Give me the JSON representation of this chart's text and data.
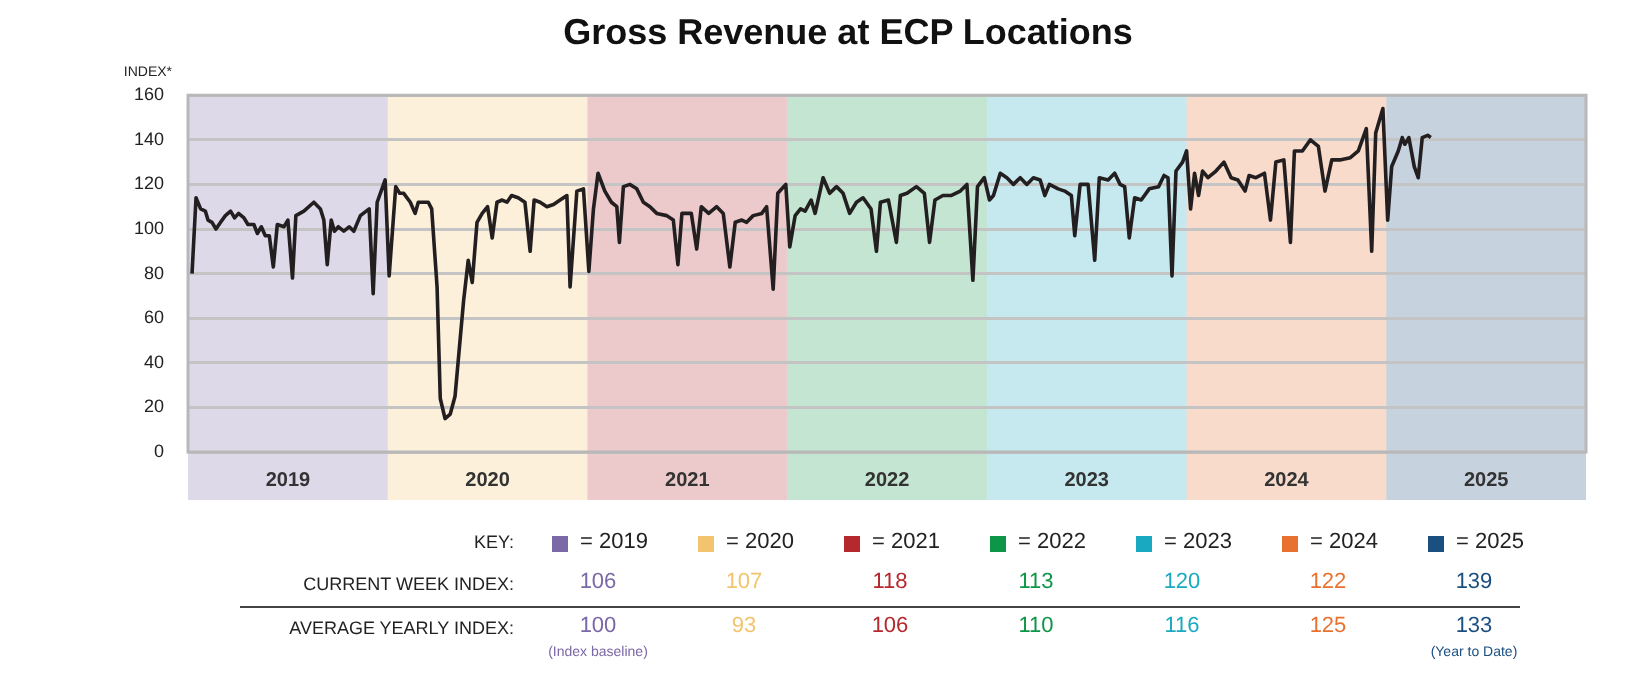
{
  "chart_data": {
    "type": "line",
    "title": "Gross Revenue at ECP Locations",
    "ylabel": "INDEX*",
    "xlim": [
      2019,
      2026
    ],
    "ylim": [
      0,
      160
    ],
    "yticks": [
      0,
      20,
      40,
      60,
      80,
      100,
      120,
      140,
      160
    ],
    "xticks": [
      {
        "value": 2019.5,
        "label": "2019"
      },
      {
        "value": 2020.5,
        "label": "2020"
      },
      {
        "value": 2021.5,
        "label": "2021"
      },
      {
        "value": 2022.5,
        "label": "2022"
      },
      {
        "value": 2023.5,
        "label": "2023"
      },
      {
        "value": 2024.5,
        "label": "2024"
      },
      {
        "value": 2025.5,
        "label": "2025"
      }
    ],
    "grid": "y",
    "legend": false,
    "marker": "none",
    "line_style": "solid",
    "x": [
      2019.02,
      2019.04,
      2019.063,
      2019.087,
      2019.1,
      2019.12,
      2019.14,
      2019.163,
      2019.187,
      2019.213,
      2019.233,
      2019.253,
      2019.28,
      2019.3,
      2019.33,
      2019.347,
      2019.367,
      2019.387,
      2019.407,
      2019.427,
      2019.447,
      2019.48,
      2019.5,
      2019.523,
      2019.54,
      2019.58,
      2019.63,
      2019.663,
      2019.68,
      2019.697,
      2019.717,
      2019.733,
      2019.753,
      2019.78,
      2019.807,
      2019.83,
      2019.863,
      2019.907,
      2019.927,
      2019.947,
      2019.987,
      2020.007,
      2020.04,
      2020.06,
      2020.08,
      2020.113,
      2020.137,
      2020.153,
      2020.18,
      2020.203,
      2020.22,
      2020.247,
      2020.263,
      2020.287,
      2020.313,
      2020.337,
      2020.357,
      2020.38,
      2020.403,
      2020.423,
      2020.447,
      2020.473,
      2020.5,
      2020.523,
      2020.547,
      2020.573,
      2020.597,
      2020.62,
      2020.653,
      2020.687,
      2020.713,
      2020.733,
      2020.763,
      2020.797,
      2020.83,
      2020.863,
      2020.897,
      2020.913,
      2020.947,
      2020.98,
      2021.007,
      2021.03,
      2021.053,
      2021.087,
      2021.12,
      2021.147,
      2021.16,
      2021.18,
      2021.213,
      2021.247,
      2021.28,
      2021.313,
      2021.347,
      2021.397,
      2021.43,
      2021.453,
      2021.473,
      2021.52,
      2021.547,
      2021.57,
      2021.607,
      2021.647,
      2021.68,
      2021.713,
      2021.74,
      2021.773,
      2021.797,
      2021.83,
      2021.873,
      2021.897,
      2021.93,
      2021.953,
      2021.993,
      2022.013,
      2022.04,
      2022.067,
      2022.09,
      2022.12,
      2022.14,
      2022.18,
      2022.213,
      2022.247,
      2022.28,
      2022.313,
      2022.347,
      2022.38,
      2022.42,
      2022.447,
      2022.467,
      2022.507,
      2022.547,
      2022.567,
      2022.6,
      2022.647,
      2022.687,
      2022.713,
      2022.74,
      2022.78,
      2022.82,
      2022.867,
      2022.9,
      2022.93,
      2022.953,
      2022.987,
      2023.013,
      2023.033,
      2023.067,
      2023.1,
      2023.133,
      2023.167,
      2023.2,
      2023.233,
      2023.267,
      2023.29,
      2023.313,
      2023.357,
      2023.39,
      2023.423,
      2023.44,
      2023.467,
      2023.507,
      2023.54,
      2023.563,
      2023.607,
      2023.64,
      2023.667,
      2023.69,
      2023.713,
      2023.74,
      2023.773,
      2023.813,
      2023.86,
      2023.887,
      2023.907,
      2023.927,
      2023.947,
      2023.98,
      2024.0,
      2024.02,
      2024.04,
      2024.06,
      2024.08,
      2024.107,
      2024.147,
      2024.187,
      2024.223,
      2024.257,
      2024.293,
      2024.313,
      2024.347,
      2024.39,
      2024.42,
      2024.447,
      2024.487,
      2024.52,
      2024.54,
      2024.58,
      2024.62,
      2024.66,
      2024.693,
      2024.727,
      2024.773,
      2024.82,
      2024.86,
      2024.9,
      2024.927,
      2024.947,
      2024.983,
      2025.007,
      2025.027,
      2025.06,
      2025.08,
      2025.093,
      2025.113,
      2025.14,
      2025.16,
      2025.18,
      2025.207,
      2025.223
    ],
    "series": [
      {
        "color": "#231f20",
        "values": [
          80,
          114,
          109,
          108,
          104,
          103,
          100,
          103,
          106,
          108,
          105,
          107,
          105,
          102,
          102,
          98,
          101,
          97,
          97,
          83,
          102,
          101,
          104,
          78,
          106,
          108,
          112,
          109,
          104,
          84,
          104,
          99,
          101,
          99,
          101,
          99,
          106,
          109,
          71,
          112,
          122,
          79,
          119,
          116,
          116,
          112,
          107,
          112,
          112,
          112,
          109,
          74,
          24,
          15,
          17,
          25,
          45,
          68,
          86,
          76,
          103,
          107,
          110,
          96,
          112,
          113,
          112,
          115,
          114,
          112,
          90,
          113,
          112,
          110,
          111,
          113,
          115,
          74,
          117,
          118,
          81,
          109,
          125,
          117,
          112,
          110,
          94,
          119,
          120,
          118,
          112,
          110,
          107,
          106,
          104,
          84,
          107,
          107,
          91,
          110,
          107,
          110,
          107,
          83,
          103,
          104,
          103,
          106,
          107,
          110,
          73,
          116,
          120,
          92,
          106,
          109,
          108,
          113,
          107,
          123,
          116,
          119,
          116,
          107,
          112,
          114,
          109,
          90,
          112,
          113,
          94,
          115,
          116,
          119,
          116,
          94,
          113,
          115,
          115,
          117,
          120,
          77,
          119,
          123,
          113,
          115,
          125,
          123,
          120,
          123,
          120,
          123,
          122,
          115,
          120,
          118,
          117,
          115,
          97,
          120,
          120,
          86,
          123,
          122,
          125,
          120,
          119,
          96,
          114,
          113,
          118,
          119,
          124,
          123,
          79,
          126,
          130,
          135,
          109,
          125,
          115,
          126,
          123,
          126,
          130,
          123,
          122,
          117,
          124,
          123,
          125,
          104,
          130,
          131,
          94,
          135,
          135,
          140,
          137,
          117,
          131,
          131,
          132,
          135,
          145,
          90,
          143,
          154,
          104,
          128,
          135,
          141,
          138,
          141,
          128,
          123,
          141,
          142,
          141
        ]
      }
    ],
    "bands": [
      {
        "axis": "x",
        "from": 2019,
        "to": 2020,
        "color": "#7b68a6"
      },
      {
        "axis": "x",
        "from": 2020,
        "to": 2021,
        "color": "#f2c46d"
      },
      {
        "axis": "x",
        "from": 2021,
        "to": 2022,
        "color": "#b5282e"
      },
      {
        "axis": "x",
        "from": 2022,
        "to": 2023,
        "color": "#0e9648"
      },
      {
        "axis": "x",
        "from": 2023,
        "to": 2024,
        "color": "#19a9c1"
      },
      {
        "axis": "x",
        "from": 2024,
        "to": 2025,
        "color": "#e8712f"
      },
      {
        "axis": "x",
        "from": 2025,
        "to": 2026,
        "color": "#1b4f7f"
      }
    ],
    "annotations": [
      "KEY:",
      "= 2019",
      "= 2020",
      "= 2021",
      "= 2022",
      "= 2023",
      "= 2024",
      "= 2025",
      "CURRENT WEEK INDEX:",
      "106",
      "107",
      "118",
      "113",
      "120",
      "122",
      "139",
      "AVERAGE YEARLY INDEX:",
      "100",
      "93",
      "106",
      "110",
      "116",
      "125",
      "133",
      "(Index baseline)",
      "(Year to Date)"
    ]
  }
}
